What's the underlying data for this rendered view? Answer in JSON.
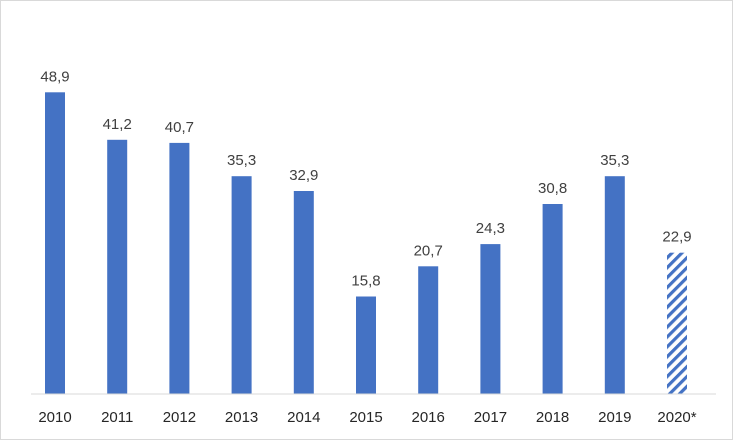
{
  "chart_data": {
    "type": "bar",
    "categories": [
      "2010",
      "2011",
      "2012",
      "2013",
      "2014",
      "2015",
      "2016",
      "2017",
      "2018",
      "2019",
      "2020*"
    ],
    "values": [
      48.9,
      41.2,
      40.7,
      35.3,
      32.9,
      15.8,
      20.7,
      24.3,
      30.8,
      35.3,
      22.9
    ],
    "value_labels": [
      "48,9",
      "41,2",
      "40,7",
      "35,3",
      "32,9",
      "15,8",
      "20,7",
      "24,3",
      "30,8",
      "35,3",
      "22,9"
    ],
    "bar_style": [
      "solid",
      "solid",
      "solid",
      "solid",
      "solid",
      "solid",
      "solid",
      "solid",
      "solid",
      "solid",
      "hatched"
    ],
    "colors": {
      "bar": "#4472c4",
      "axis": "#d9d9d9"
    },
    "title": "",
    "xlabel": "",
    "ylabel": "",
    "ylim": [
      0,
      50
    ],
    "grid": false,
    "legend": "none"
  }
}
